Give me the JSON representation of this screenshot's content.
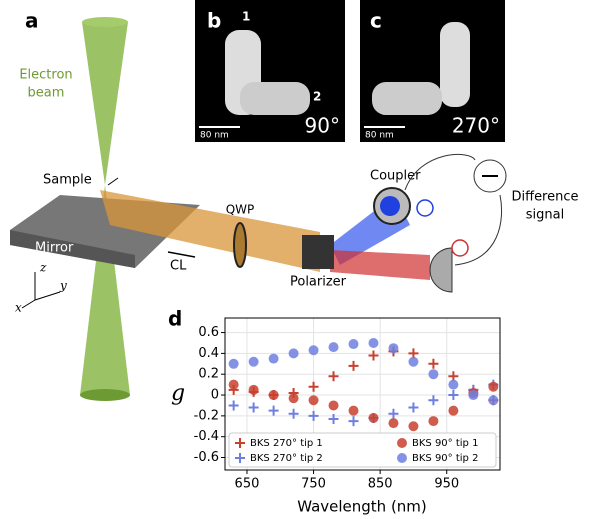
{
  "schematic": {
    "label": "a",
    "electron_beam": [
      "Electron",
      "beam"
    ],
    "sample": "Sample",
    "mirror": "Mirror",
    "cl": "CL",
    "qwp": "QWP",
    "polarizer": "Polarizer",
    "coupler": "Coupler",
    "difference_signal": [
      "Difference",
      "signal"
    ],
    "axes": [
      "x",
      "y",
      "z"
    ]
  },
  "micrographs": [
    {
      "label": "b",
      "scale_bar": "80 nm",
      "angle": "90°",
      "tips": [
        "1",
        "2"
      ]
    },
    {
      "label": "c",
      "scale_bar": "80 nm",
      "angle": "270°"
    }
  ],
  "chart_data": {
    "type": "scatter",
    "panel_label": "d",
    "xlabel": "Wavelength (nm)",
    "ylabel": "g",
    "x": [
      630,
      660,
      690,
      720,
      750,
      780,
      810,
      840,
      870,
      900,
      930,
      960,
      990,
      1020
    ],
    "series": [
      {
        "name": "BKS 270° tip 1",
        "color": "#c8402e",
        "marker": "plus",
        "values": [
          0.05,
          0.03,
          0.0,
          0.02,
          0.08,
          0.18,
          0.28,
          0.38,
          0.42,
          0.4,
          0.3,
          0.18,
          0.05,
          -0.05
        ]
      },
      {
        "name": "BKS 270° tip 2",
        "color": "#6f7fe0",
        "marker": "plus",
        "values": [
          -0.1,
          -0.12,
          -0.15,
          -0.18,
          -0.2,
          -0.23,
          -0.25,
          -0.22,
          -0.18,
          -0.12,
          -0.05,
          0.0,
          0.05,
          0.1
        ]
      },
      {
        "name": "BKS 90° tip 1",
        "color": "#c8402e",
        "marker": "circle",
        "values": [
          0.1,
          0.05,
          0.0,
          -0.03,
          -0.05,
          -0.1,
          -0.15,
          -0.22,
          -0.27,
          -0.3,
          -0.25,
          -0.15,
          0.02,
          0.08
        ]
      },
      {
        "name": "BKS 90° tip 2",
        "color": "#6f7fe0",
        "marker": "circle",
        "values": [
          0.3,
          0.32,
          0.35,
          0.4,
          0.43,
          0.46,
          0.49,
          0.5,
          0.45,
          0.32,
          0.2,
          0.1,
          0.0,
          -0.05
        ]
      }
    ],
    "xlim": [
      617,
      1030
    ],
    "ylim": [
      -0.72,
      0.74
    ],
    "xticks": [
      650,
      750,
      850,
      950
    ],
    "yticks": [
      0.6,
      0.4,
      0.2,
      0,
      -0.2,
      -0.4,
      -0.6
    ],
    "grid": true,
    "legend": "lower center"
  }
}
